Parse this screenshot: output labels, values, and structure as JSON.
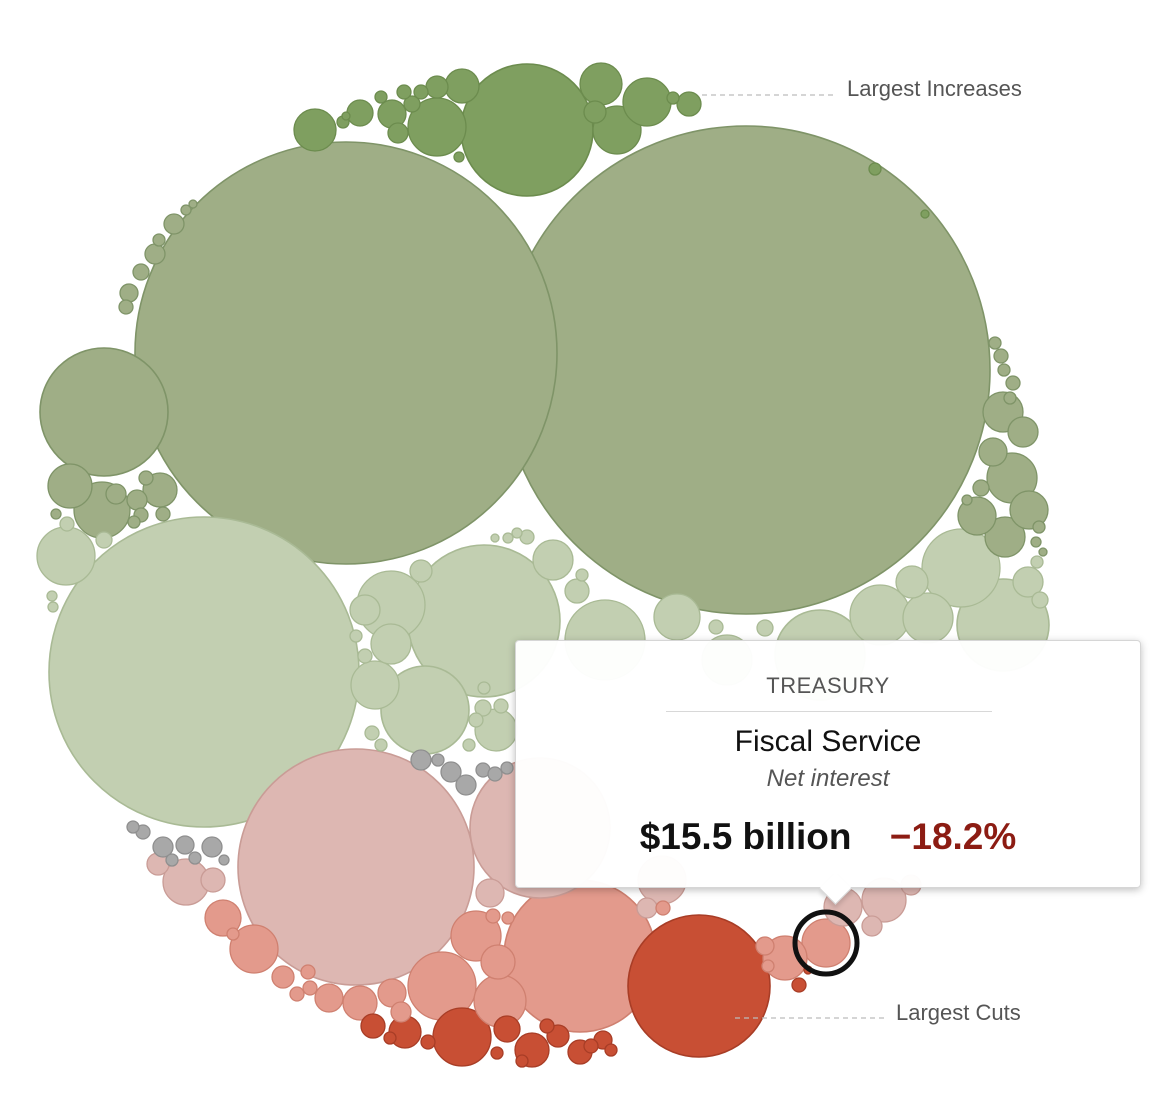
{
  "chart_data": {
    "type": "bubble",
    "annotations": {
      "largest_increases": "Largest Increases",
      "largest_cuts": "Largest Cuts"
    },
    "color_scale": {
      "large_increase": "#7f9f60",
      "moderate_increase": "#9fae86",
      "small_increase": "#c2cfb1",
      "no_change": "#a8a8a8",
      "small_cut": "#ddb7b2",
      "moderate_cut": "#e39a8c",
      "large_cut": "#c84f34"
    },
    "highlighted": {
      "department": "TREASURY",
      "name": "Fiscal Service",
      "subtitle": "Net interest",
      "amount": "$15.5 billion",
      "change": "−18.2%"
    }
  }
}
